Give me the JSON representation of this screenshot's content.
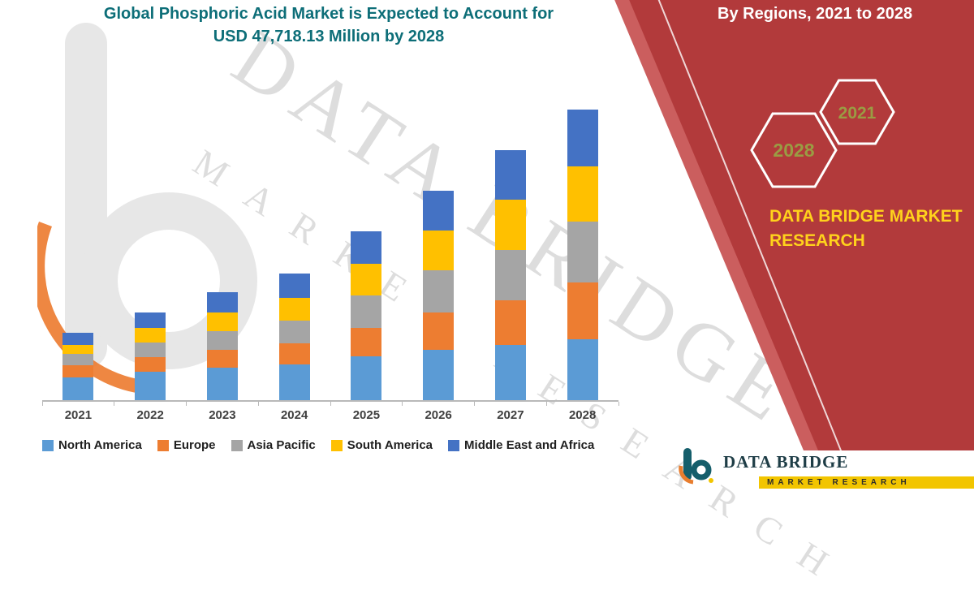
{
  "header": {
    "title_line1": "Global Phosphoric Acid Market is Expected to Account for",
    "title_line2": "USD 47,718.13 Million by 2028"
  },
  "side_panel": {
    "heading": "By Regions, 2021 to 2028",
    "hexagons": [
      {
        "label": "2028"
      },
      {
        "label": "2021"
      }
    ],
    "brand_line1": "DATA BRIDGE MARKET",
    "brand_line2": "RESEARCH",
    "panel_color": "#b23a3b",
    "brand_text_color": "#ffd21c",
    "hexagon_label_color": "#9a9c43"
  },
  "watermark": {
    "line1": "DATA BRIDGE",
    "line2": "MARKET RESEARCH"
  },
  "footer_logo": {
    "name_line": "DATA BRIDGE",
    "sub_line": "MARKET RESEARCH"
  },
  "chart_data": {
    "type": "bar",
    "stacked": true,
    "title": "Global Phosphoric Acid Market by Regions, 2021 to 2028",
    "units": "USD Million",
    "labeled_value": "USD 47,718.13 Million by 2028",
    "value_axis_visible": false,
    "grid": false,
    "legend_position": "bottom",
    "xlabel": "",
    "ylabel": "",
    "ylim": [
      0,
      50000
    ],
    "categories": [
      "2021",
      "2022",
      "2023",
      "2024",
      "2025",
      "2026",
      "2027",
      "2028"
    ],
    "totals_estimated": [
      11100,
      14400,
      17700,
      20800,
      27700,
      34400,
      41100,
      47718.13
    ],
    "series": [
      {
        "name": "North America",
        "color": "#5B9BD5",
        "values": [
          3774,
          4608,
          5310,
          5824,
          7202,
          8256,
          9042,
          10020
        ]
      },
      {
        "name": "Europe",
        "color": "#ED7D31",
        "values": [
          1998,
          2448,
          3009,
          3536,
          4709,
          6192,
          7398,
          9305
        ]
      },
      {
        "name": "Asia Pacific",
        "color": "#A5A5A5",
        "values": [
          1776,
          2448,
          3009,
          3744,
          5263,
          6880,
          8220,
          10021
        ]
      },
      {
        "name": "South America",
        "color": "#FFC000",
        "values": [
          1554,
          2304,
          3009,
          3744,
          5263,
          6536,
          8220,
          9066
        ]
      },
      {
        "name": "Middle East and Africa",
        "color": "#4472C4",
        "values": [
          1998,
          2592,
          3363,
          3952,
          5263,
          6536,
          8220,
          9306.13
        ]
      }
    ]
  }
}
